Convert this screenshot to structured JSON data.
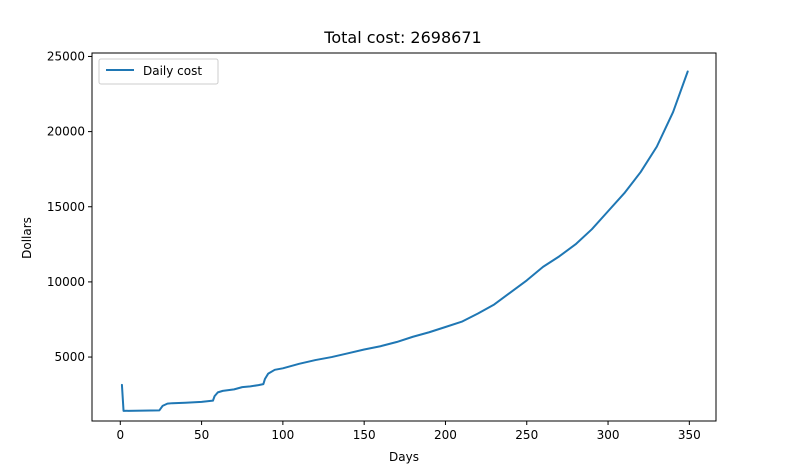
{
  "chart_data": {
    "type": "line",
    "title": "Total cost: 2698671",
    "xlabel": "Days",
    "ylabel": "Dollars",
    "xlim": [
      -17.4,
      366.4
    ],
    "ylim": [
      745,
      25230
    ],
    "xticks": [
      0,
      50,
      100,
      150,
      200,
      250,
      300,
      350
    ],
    "xtick_labels": [
      "0",
      "50",
      "100",
      "150",
      "200",
      "250",
      "300",
      "350"
    ],
    "yticks": [
      5000,
      10000,
      15000,
      20000,
      25000
    ],
    "ytick_labels": [
      "5000",
      "10000",
      "15000",
      "20000",
      "25000"
    ],
    "grid": false,
    "legend": "upper left",
    "series": [
      {
        "name": "Daily cost",
        "color": "#1f77b4",
        "x": [
          1,
          2,
          24,
          26,
          29,
          32,
          40,
          50,
          57,
          58,
          60,
          63,
          70,
          75,
          80,
          85,
          88,
          89,
          91,
          95,
          100,
          110,
          120,
          130,
          140,
          150,
          160,
          170,
          180,
          190,
          200,
          210,
          220,
          230,
          240,
          250,
          260,
          270,
          280,
          290,
          300,
          310,
          320,
          330,
          340,
          349
        ],
        "y": [
          3150,
          1420,
          1450,
          1750,
          1900,
          1930,
          1960,
          2020,
          2100,
          2400,
          2650,
          2750,
          2850,
          3000,
          3050,
          3130,
          3200,
          3550,
          3900,
          4150,
          4250,
          4550,
          4800,
          5000,
          5250,
          5500,
          5720,
          6000,
          6350,
          6650,
          7000,
          7350,
          7900,
          8500,
          9300,
          10100,
          11000,
          11700,
          12500,
          13500,
          14700,
          15900,
          17300,
          19000,
          21300,
          24000
        ]
      }
    ]
  }
}
